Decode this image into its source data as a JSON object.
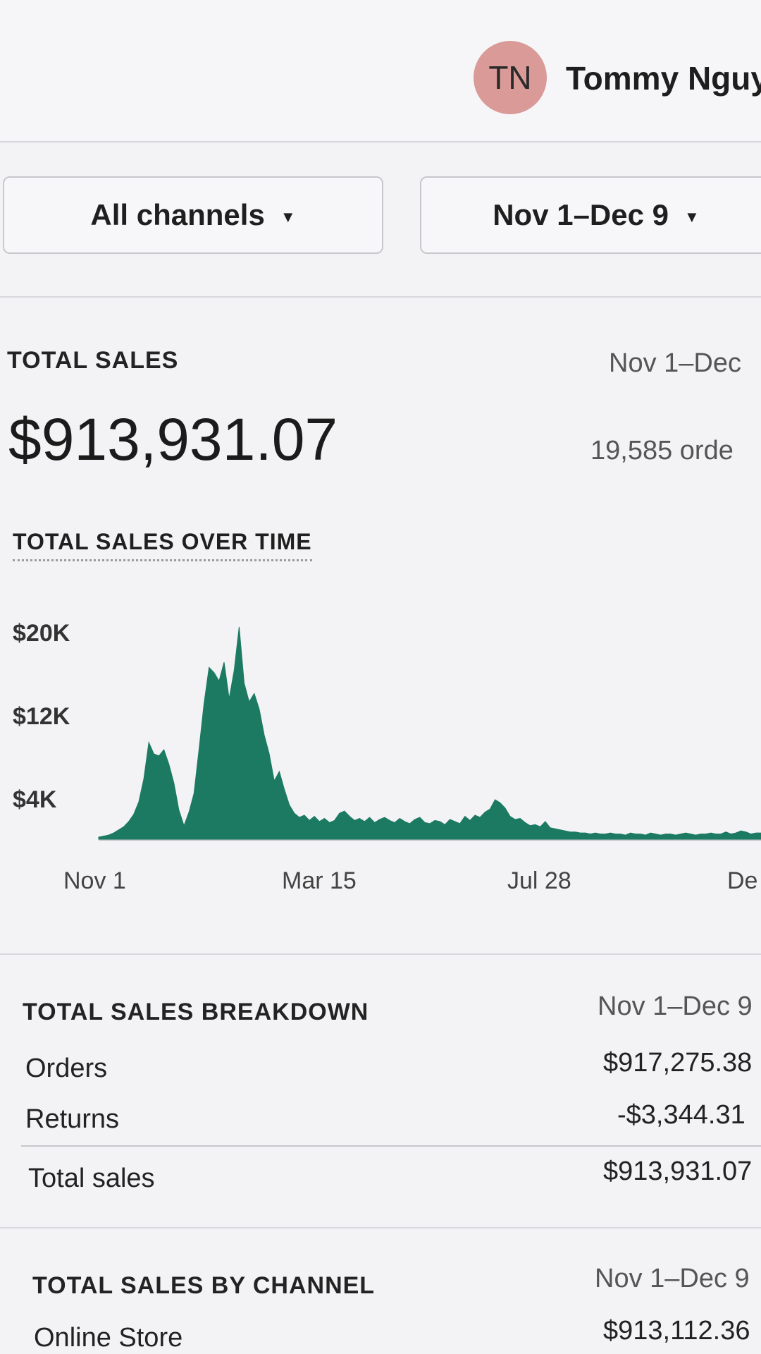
{
  "header": {
    "avatar_initials": "TN",
    "user_name": "Tommy Nguy"
  },
  "filters": {
    "channel": "All channels",
    "date_range": "Nov 1–Dec 9"
  },
  "total_sales": {
    "title": "TOTAL SALES",
    "date_label": "Nov 1–Dec",
    "amount": "$913,931.07",
    "orders_count": "19,585 orde"
  },
  "chart": {
    "title": "TOTAL SALES OVER TIME",
    "color": "#1c7a63"
  },
  "chart_data": {
    "type": "area",
    "title": "TOTAL SALES OVER TIME",
    "x_tick_labels": [
      "Nov 1",
      "Mar 15",
      "Jul 28",
      "De"
    ],
    "y_tick_labels": [
      "$20K",
      "$12K",
      "$4K"
    ],
    "y_ticks": [
      20000,
      12000,
      4000
    ],
    "ylim": [
      0,
      21000
    ],
    "grid": false,
    "series": [
      {
        "values": [
          200,
          300,
          400,
          600,
          900,
          1200,
          1700,
          2400,
          3600,
          5800,
          9300,
          8200,
          8000,
          8600,
          7200,
          5400,
          2800,
          1300,
          2600,
          4400,
          8600,
          13000,
          16500,
          16000,
          15200,
          17000,
          13500,
          16200,
          20400,
          15000,
          13200,
          14000,
          12500,
          10000,
          8200,
          5600,
          6500,
          4800,
          3300,
          2500,
          2100,
          2300,
          1800,
          2200,
          1700,
          2000,
          1600,
          1800,
          2500,
          2700,
          2200,
          1800,
          2000,
          1700,
          2100,
          1600,
          1900,
          2100,
          1800,
          1600,
          2000,
          1700,
          1500,
          1900,
          2100,
          1600,
          1500,
          1800,
          1700,
          1400,
          1900,
          1700,
          1500,
          2200,
          1800,
          2300,
          2100,
          2600,
          2900,
          3800,
          3500,
          3000,
          2200,
          1900,
          2000,
          1600,
          1300,
          1400,
          1200,
          1700,
          1100,
          1000,
          900,
          800,
          700,
          700,
          600,
          600,
          500,
          600,
          500,
          500,
          600,
          500,
          500,
          400,
          600,
          500,
          500,
          400,
          600,
          500,
          400,
          500,
          500,
          400,
          500,
          600,
          500,
          400,
          500,
          500,
          600,
          500,
          500,
          700,
          500,
          600,
          800,
          700,
          500,
          600,
          600
        ]
      }
    ]
  },
  "breakdown": {
    "title": "TOTAL SALES BREAKDOWN",
    "date_label": "Nov 1–Dec 9",
    "rows": [
      {
        "label": "Orders",
        "value": "$917,275.38"
      },
      {
        "label": "Returns",
        "value": "-$3,344.31"
      },
      {
        "label": "Total sales",
        "value": "$913,931.07"
      }
    ]
  },
  "by_channel": {
    "title": "TOTAL SALES BY CHANNEL",
    "date_label": "Nov 1–Dec 9",
    "rows": [
      {
        "label": "Online Store",
        "value": "$913,112.36"
      }
    ]
  }
}
